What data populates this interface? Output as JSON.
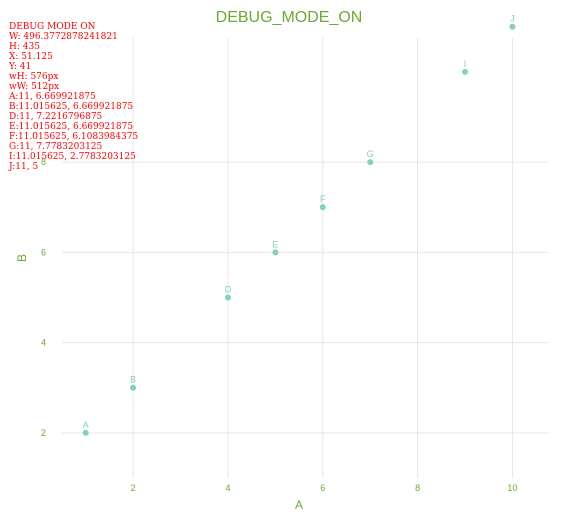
{
  "colors": {
    "accent": "#6aaa32",
    "point": "#7fd3b9",
    "grid": "#e6e6e6",
    "debug_text": "#ff0000"
  },
  "debug": {
    "lines": [
      "DEBUG MODE ON",
      "W: 496.3772878241821",
      "H: 435",
      "X: 51.125",
      "Y: 41",
      "wH: 576px",
      "wW: 512px",
      "A:11, 6.669921875",
      "B:11.015625, 6.669921875",
      "D:11, 7.2216796875",
      "E:11.015625, 6.669921875",
      "F:11.015625, 6.1083984375",
      "G:11, 7.7783203125",
      "I:11.015625, 2.7783203125",
      "J:11, 5"
    ]
  },
  "chart_data": {
    "type": "scatter",
    "title": "DEBUG_MODE_ON",
    "xlabel": "A",
    "ylabel": "B",
    "xlim": [
      0.5,
      10.75
    ],
    "ylim": [
      1.0,
      10.75
    ],
    "x_ticks": [
      2,
      4,
      6,
      8,
      10
    ],
    "y_ticks": [
      2,
      4,
      6,
      8
    ],
    "grid": true,
    "points": [
      {
        "label": "A",
        "x": 1,
        "y": 2
      },
      {
        "label": "B",
        "x": 2,
        "y": 3
      },
      {
        "label": "D",
        "x": 4,
        "y": 5
      },
      {
        "label": "E",
        "x": 5,
        "y": 6
      },
      {
        "label": "F",
        "x": 6,
        "y": 7
      },
      {
        "label": "G",
        "x": 7,
        "y": 8
      },
      {
        "label": "I",
        "x": 9,
        "y": 10
      },
      {
        "label": "J",
        "x": 10,
        "y": 11
      }
    ]
  }
}
